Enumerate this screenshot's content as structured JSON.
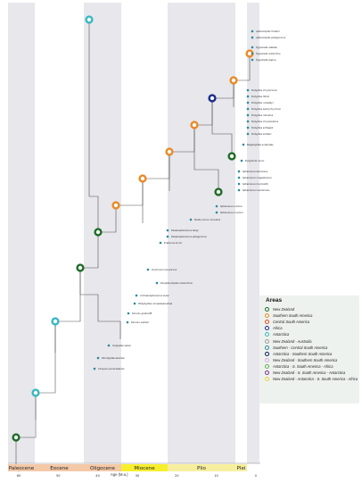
{
  "legend": {
    "title": "Areas",
    "items": [
      {
        "label": "New Zealand",
        "color": "#1e6b26"
      },
      {
        "label": "Southern South America",
        "color": "#e98a26"
      },
      {
        "label": "Central South America",
        "color": "#e04a1c"
      },
      {
        "label": "Africa",
        "color": "#1a2a8c"
      },
      {
        "label": "Antarctica",
        "color": "#3ab7c4"
      },
      {
        "label": "New Zealand - Australia",
        "color": "#9a9a9a"
      },
      {
        "label": "Southern - Central South America",
        "color": "#2a8c9a"
      },
      {
        "label": "Antarctica - Southern South America",
        "color": "#0b1a5a"
      },
      {
        "label": "New Zealand - Southern South America",
        "color": "#d7a7e0"
      },
      {
        "label": "Antarctica - S. South America - Africa",
        "color": "#5fb04a"
      },
      {
        "label": "New Zealand - S. South America - Antarctica",
        "color": "#7a2d8c"
      },
      {
        "label": "New Zealand - Antarctica - S. South America - Africa",
        "color": "#e8d23a"
      }
    ]
  },
  "epochs": [
    {
      "label": "Paleocene",
      "color": "#f4c9a7"
    },
    {
      "label": "Eocene",
      "color": "#f4c9a7"
    },
    {
      "label": "Oligocene",
      "color": "#f4c9a7"
    },
    {
      "label": "Miocene",
      "color": "#f7ef2e"
    },
    {
      "label": "Plio",
      "color": "#f7ef9e"
    },
    {
      "label": "Plei",
      "color": "#f7ef9e"
    }
  ],
  "axis": {
    "label": "Age (M.a.)",
    "ticks": [
      "60",
      "50",
      "40",
      "30",
      "20",
      "10",
      "0"
    ]
  },
  "taxa": [
    {
      "label": "Aptenodytes forsteri"
    },
    {
      "label": "Aptenodytes patagonicus"
    },
    {
      "label": "Pygoscelis adeliae"
    },
    {
      "label": "Pygoscelis antarctica"
    },
    {
      "label": "Pygoscelis papua"
    },
    {
      "label": "Eudyptes chrysocome"
    },
    {
      "label": "Eudyptes filholi"
    },
    {
      "label": "Eudyptes moseleyi"
    },
    {
      "label": "Eudyptes pachyrhynchus"
    },
    {
      "label": "Eudyptes robustus"
    },
    {
      "label": "Eudyptes chrysolophus"
    },
    {
      "label": "Eudyptes schlegeli"
    },
    {
      "label": "Eudyptes sclateri"
    },
    {
      "label": "Megadyptes antipodes"
    },
    {
      "label": "Eudyptula minor"
    },
    {
      "label": "Spheniscus demersus"
    },
    {
      "label": "Spheniscus magellanicus"
    },
    {
      "label": "Spheniscus humboldti"
    },
    {
      "label": "Spheniscus mendiculus"
    },
    {
      "label": "Madrynornis mirandus"
    },
    {
      "label": "Spheniscus urbinai"
    },
    {
      "label": "Spheniscus muizoni"
    },
    {
      "label": "Palaeospheniscus bergi"
    },
    {
      "label": "Palaeospheniscus patagonicus"
    },
    {
      "label": "Eretiscus tonnii"
    },
    {
      "label": "Duntroonornis parvus"
    },
    {
      "label": "Paraptenodytes antarcticus"
    },
    {
      "label": "Archaeospheniscus lowei"
    },
    {
      "label": "Platydyptes novaezealandiae"
    },
    {
      "label": "Kairuku grebneffi"
    },
    {
      "label": "Kairuku waitaki"
    },
    {
      "label": "Icadyptes salasi"
    },
    {
      "label": "Perudyptes devriesi"
    },
    {
      "label": "Inkayacu paracasensis"
    },
    {
      "label": "Waimanu manneringi"
    },
    {
      "label": "Waimanu tuatahi"
    }
  ]
}
